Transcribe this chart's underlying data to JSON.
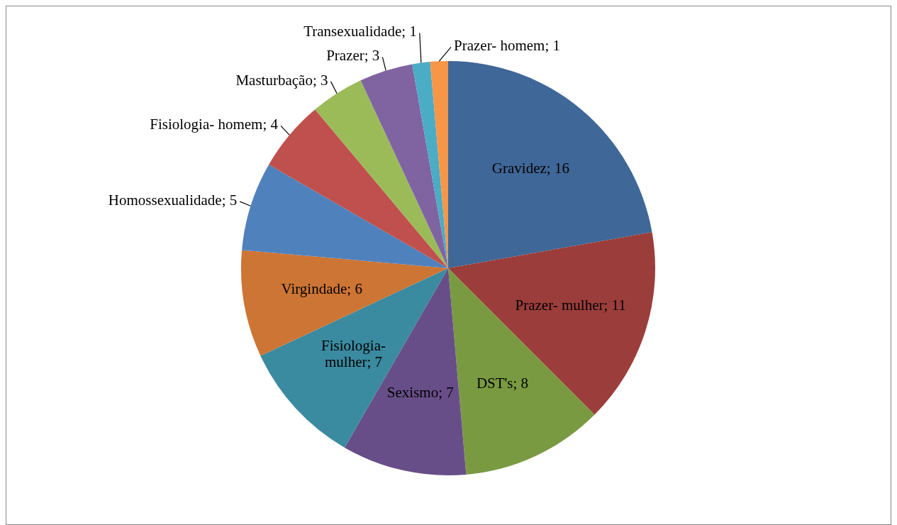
{
  "chart_data": {
    "type": "pie",
    "categories": [
      "Gravidez",
      "Prazer- mulher",
      "DST's",
      "Sexismo",
      "Fisiologia- mulher",
      "Virgindade",
      "Homossexualidade",
      "Fisiologia- homem",
      "Masturbação",
      "Prazer",
      "Transexualidade",
      "Prazer- homem"
    ],
    "values": [
      16,
      11,
      8,
      7,
      7,
      6,
      5,
      4,
      3,
      3,
      1,
      1
    ],
    "colors": [
      "#3f6797",
      "#9b3d3a",
      "#7a9a42",
      "#684e88",
      "#3a8aa0",
      "#cd7534",
      "#4f81bd",
      "#c0504d",
      "#9bbb59",
      "#8064a2",
      "#4bacc6",
      "#f79646"
    ],
    "value_labels": [
      "; 16",
      "; 11",
      "; 8",
      "; 7",
      "; 7",
      "; 6",
      "; 5",
      "; 4",
      "; 3",
      "; 3",
      "; 1",
      "; 1"
    ]
  }
}
